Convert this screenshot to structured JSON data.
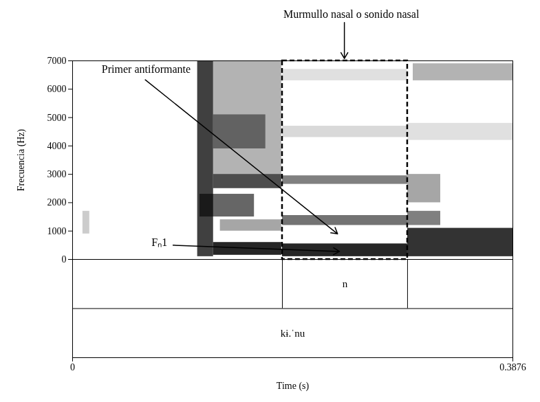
{
  "chart_data": {
    "type": "spectrogram",
    "xlabel": "Time (s)",
    "ylabel": "Frecuencia (Hz)",
    "xlim": [
      0,
      0.3876
    ],
    "xticks": [
      0,
      0.3876
    ],
    "ylim": [
      0,
      7000
    ],
    "yticks": [
      0,
      1000,
      2000,
      3000,
      4000,
      5000,
      6000,
      7000
    ],
    "grid": false,
    "color": "#000000",
    "zlim": [
      0,
      1
    ],
    "cells": [
      {
        "t0": 0.009,
        "t1": 0.015,
        "f0": 900,
        "f1": 1700,
        "intensity": 0.2
      },
      {
        "t0": 0.11,
        "t1": 0.124,
        "f0": 100,
        "f1": 7000,
        "intensity": 0.75
      },
      {
        "t0": 0.124,
        "t1": 0.184,
        "f0": 3000,
        "f1": 7000,
        "intensity": 0.3
      },
      {
        "t0": 0.124,
        "t1": 0.184,
        "f0": 150,
        "f1": 600,
        "intensity": 0.85
      },
      {
        "t0": 0.112,
        "t1": 0.16,
        "f0": 1500,
        "f1": 2300,
        "intensity": 0.6
      },
      {
        "t0": 0.124,
        "t1": 0.184,
        "f0": 2500,
        "f1": 3000,
        "intensity": 0.7
      },
      {
        "t0": 0.124,
        "t1": 0.17,
        "f0": 3900,
        "f1": 5100,
        "intensity": 0.45
      },
      {
        "t0": 0.13,
        "t1": 0.184,
        "f0": 1000,
        "f1": 1400,
        "intensity": 0.35
      },
      {
        "t0": 0.1847,
        "t1": 0.2949,
        "f0": 100,
        "f1": 550,
        "intensity": 0.85
      },
      {
        "t0": 0.1847,
        "t1": 0.2949,
        "f0": 1200,
        "f1": 1550,
        "intensity": 0.55
      },
      {
        "t0": 0.1847,
        "t1": 0.2949,
        "f0": 2650,
        "f1": 2950,
        "intensity": 0.5
      },
      {
        "t0": 0.1847,
        "t1": 0.2949,
        "f0": 4300,
        "f1": 4700,
        "intensity": 0.15
      },
      {
        "t0": 0.1847,
        "t1": 0.2949,
        "f0": 6300,
        "f1": 6700,
        "intensity": 0.12
      },
      {
        "t0": 0.2949,
        "t1": 0.3876,
        "f0": 100,
        "f1": 1100,
        "intensity": 0.8
      },
      {
        "t0": 0.2949,
        "t1": 0.324,
        "f0": 2000,
        "f1": 3000,
        "intensity": 0.35
      },
      {
        "t0": 0.2949,
        "t1": 0.324,
        "f0": 1200,
        "f1": 1700,
        "intensity": 0.5
      },
      {
        "t0": 0.2998,
        "t1": 0.3876,
        "f0": 6300,
        "f1": 6900,
        "intensity": 0.3
      },
      {
        "t0": 0.2949,
        "t1": 0.3876,
        "f0": 4200,
        "f1": 4800,
        "intensity": 0.12
      }
    ],
    "highlight": {
      "t0": 0.1847,
      "t1": 0.2949,
      "f0": 0,
      "f1": 7000
    },
    "annotations": [
      {
        "text": "Murmullo nasal o sonido nasal",
        "x": 0.2454,
        "y": 8640,
        "arrow_from": [
          0.2393,
          8350
        ],
        "arrow_to": [
          0.2393,
          7080
        ]
      },
      {
        "text": "Primer antiformante",
        "x": 0.0648,
        "y": 6700,
        "arrow_from": [
          0.064,
          6330
        ],
        "arrow_to": [
          0.2333,
          900
        ]
      },
      {
        "text": "Fₙ1",
        "x": 0.0765,
        "y": 600,
        "arrow_from": [
          0.0885,
          500
        ],
        "arrow_to": [
          0.235,
          280
        ]
      }
    ],
    "tiers": [
      {
        "intervals": [
          {
            "t0": 0.1847,
            "t1": 0.2949,
            "text": "n"
          }
        ]
      },
      {
        "intervals": [
          {
            "t0": 0,
            "t1": 0.3876,
            "text": "kɨ.ˈnu"
          }
        ]
      }
    ]
  }
}
